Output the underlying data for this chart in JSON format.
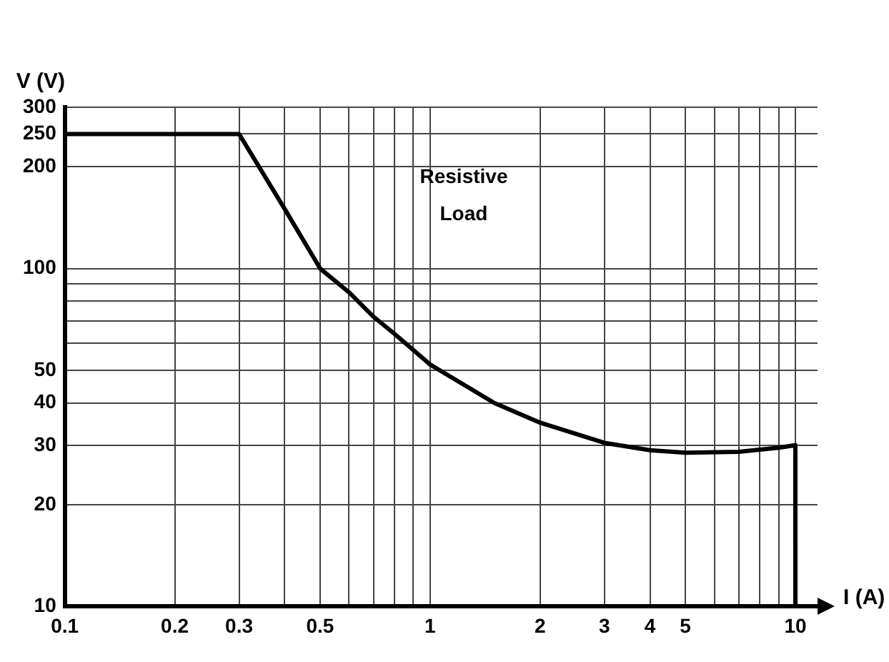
{
  "chart_data": {
    "type": "line",
    "xlabel": "I (A)",
    "ylabel": "V (V)",
    "annotations": [
      "Resistive Load"
    ],
    "log": "xy",
    "grid": true,
    "legend": false,
    "marker": "none",
    "line_style": "solid",
    "xlim": [
      0.1,
      11.5
    ],
    "ylim": [
      10,
      300
    ],
    "xticks": [
      0.1,
      0.2,
      0.3,
      {
        "value": 0.4,
        "label": null
      },
      0.5,
      {
        "value": 0.6,
        "label": null
      },
      {
        "value": 0.7,
        "label": null
      },
      {
        "value": 0.8,
        "label": null
      },
      {
        "value": 0.9,
        "label": null
      },
      1,
      2,
      3,
      4,
      5,
      {
        "value": 6,
        "label": null
      },
      {
        "value": 7,
        "label": null
      },
      {
        "value": 8,
        "label": null
      },
      {
        "value": 9,
        "label": null
      },
      10
    ],
    "yticks": [
      10,
      20,
      30,
      40,
      50,
      {
        "value": 60,
        "label": null
      },
      {
        "value": 70,
        "label": null
      },
      {
        "value": 80,
        "label": null
      },
      {
        "value": 90,
        "label": null
      },
      100,
      200,
      250,
      300
    ],
    "series": [
      {
        "color": "#000000",
        "x": [
          0.1,
          0.3,
          0.35,
          0.4,
          0.5,
          0.6,
          0.7,
          0.8,
          1,
          1.5,
          2,
          3,
          4,
          5,
          7,
          9,
          10,
          10
        ],
        "values": [
          250,
          250,
          190,
          150,
          100,
          85,
          72,
          64,
          52,
          40,
          35,
          30.5,
          29,
          28.5,
          28.7,
          29.5,
          30,
          10
        ]
      }
    ]
  }
}
